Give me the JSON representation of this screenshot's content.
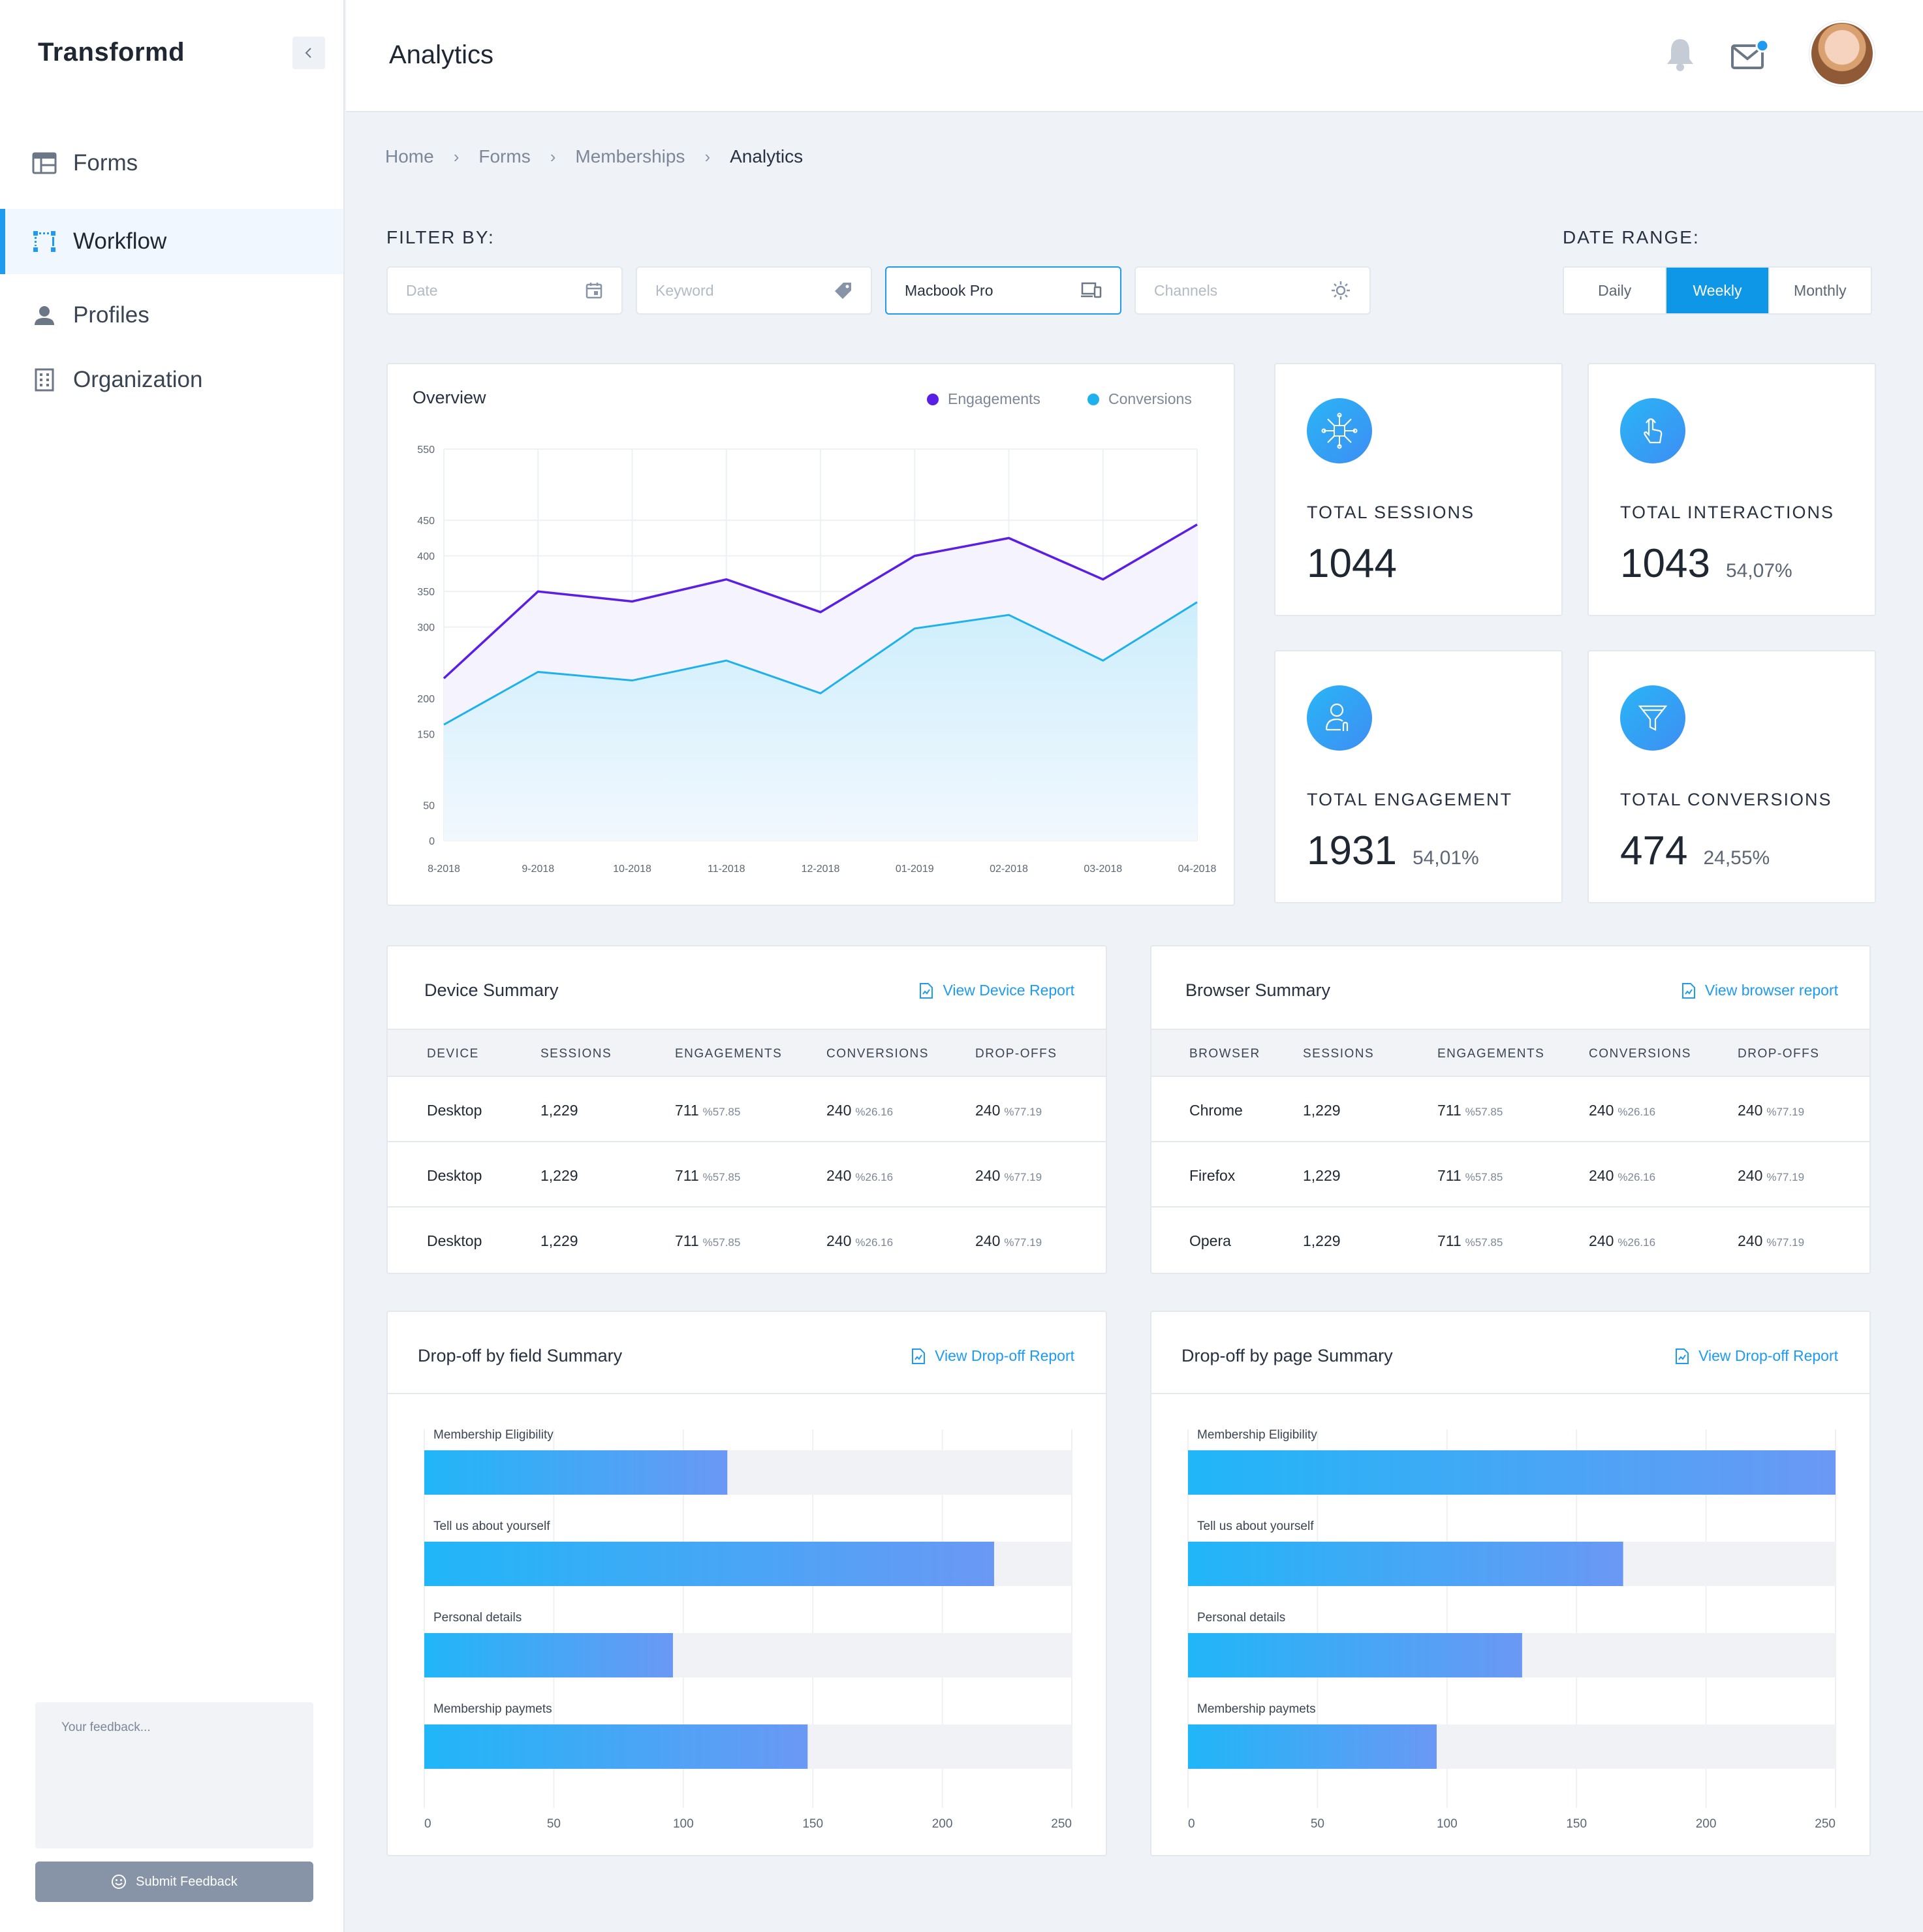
{
  "app": {
    "brand": "Transformd",
    "page_title": "Analytics"
  },
  "sidebar": {
    "items": [
      {
        "label": "Forms",
        "icon": "table-icon",
        "active": false
      },
      {
        "label": "Workflow",
        "icon": "workflow-icon",
        "active": true
      },
      {
        "label": "Profiles",
        "icon": "user-icon",
        "active": false
      },
      {
        "label": "Organization",
        "icon": "building-icon",
        "active": false
      }
    ],
    "feedback_placeholder": "Your feedback...",
    "feedback_button": "Submit Feedback"
  },
  "breadcrumb": [
    "Home",
    "Forms",
    "Memberships",
    "Analytics"
  ],
  "filters": {
    "label": "FILTER BY:",
    "date_placeholder": "Date",
    "keyword_placeholder": "Keyword",
    "device_value": "Macbook Pro",
    "channels_placeholder": "Channels"
  },
  "date_range": {
    "label": "DATE RANGE:",
    "options": [
      "Daily",
      "Weekly",
      "Monthly"
    ],
    "selected": "Weekly"
  },
  "colors": {
    "accent": "#1e9bf0",
    "engagements": "#5a1ee6",
    "conversions": "#1fb1ec"
  },
  "overview": {
    "title": "Overview",
    "legend": [
      "Engagements",
      "Conversions"
    ]
  },
  "chart_data": [
    {
      "type": "area",
      "title": "Overview",
      "categories": [
        "8-2018",
        "9-2018",
        "10-2018",
        "11-2018",
        "12-2018",
        "01-2019",
        "02-2018",
        "03-2018",
        "04-2018"
      ],
      "y_ticks": [
        0,
        50,
        150,
        200,
        300,
        350,
        400,
        450,
        550
      ],
      "ylim": [
        0,
        550
      ],
      "grid": true,
      "legend_position": "top-right",
      "series": [
        {
          "name": "Engagements",
          "values": [
            228,
            350,
            336,
            367,
            321,
            400,
            425,
            367,
            444
          ]
        },
        {
          "name": "Conversions",
          "values": [
            163,
            237,
            225,
            253,
            207,
            298,
            317,
            253,
            335
          ]
        }
      ]
    },
    {
      "type": "bar",
      "title": "Drop-off by field Summary",
      "orientation": "horizontal",
      "categories": [
        "Membership Eligibility",
        "Tell us about yourself",
        "Personal details",
        "Membership paymets"
      ],
      "values": [
        117,
        220,
        96,
        148
      ],
      "x_ticks": [
        0,
        50,
        100,
        150,
        200,
        250
      ],
      "xlim": [
        0,
        250
      ]
    },
    {
      "type": "bar",
      "title": "Drop-off by page Summary",
      "orientation": "horizontal",
      "categories": [
        "Membership Eligibility",
        "Tell us about yourself",
        "Personal details",
        "Membership paymets"
      ],
      "values": [
        250,
        168,
        129,
        96
      ],
      "x_ticks": [
        0,
        50,
        100,
        150,
        200,
        250
      ],
      "xlim": [
        0,
        250
      ]
    }
  ],
  "stats": [
    {
      "label": "TOTAL SESSIONS",
      "value": "1044",
      "pct": "",
      "icon": "network-icon"
    },
    {
      "label": "TOTAL INTERACTIONS",
      "value": "1043",
      "pct": "54,07%",
      "icon": "hand-pointer-icon"
    },
    {
      "label": "TOTAL ENGAGEMENT",
      "value": "1931",
      "pct": "54,01%",
      "icon": "user-engage-icon"
    },
    {
      "label": "TOTAL CONVERSIONS",
      "value": "474",
      "pct": "24,55%",
      "icon": "funnel-icon"
    }
  ],
  "device_summary": {
    "title": "Device Summary",
    "link": "View Device Report",
    "headers": [
      "DEVICE",
      "SESSIONS",
      "ENGAGEMENTS",
      "CONVERSIONS",
      "DROP-OFFS"
    ],
    "rows": [
      {
        "name": "Desktop",
        "sessions": "1,229",
        "eng": "711",
        "eng_pct": "%57.85",
        "conv": "240",
        "conv_pct": "%26.16",
        "drop": "240",
        "drop_pct": "%77.19"
      },
      {
        "name": "Desktop",
        "sessions": "1,229",
        "eng": "711",
        "eng_pct": "%57.85",
        "conv": "240",
        "conv_pct": "%26.16",
        "drop": "240",
        "drop_pct": "%77.19"
      },
      {
        "name": "Desktop",
        "sessions": "1,229",
        "eng": "711",
        "eng_pct": "%57.85",
        "conv": "240",
        "conv_pct": "%26.16",
        "drop": "240",
        "drop_pct": "%77.19"
      }
    ]
  },
  "browser_summary": {
    "title": "Browser Summary",
    "link": "View browser report",
    "headers": [
      "BROWSER",
      "SESSIONS",
      "ENGAGEMENTS",
      "CONVERSIONS",
      "DROP-OFFS"
    ],
    "rows": [
      {
        "name": "Chrome",
        "sessions": "1,229",
        "eng": "711",
        "eng_pct": "%57.85",
        "conv": "240",
        "conv_pct": "%26.16",
        "drop": "240",
        "drop_pct": "%77.19"
      },
      {
        "name": "Firefox",
        "sessions": "1,229",
        "eng": "711",
        "eng_pct": "%57.85",
        "conv": "240",
        "conv_pct": "%26.16",
        "drop": "240",
        "drop_pct": "%77.19"
      },
      {
        "name": "Opera",
        "sessions": "1,229",
        "eng": "711",
        "eng_pct": "%57.85",
        "conv": "240",
        "conv_pct": "%26.16",
        "drop": "240",
        "drop_pct": "%77.19"
      }
    ]
  },
  "dropoff_field": {
    "title": "Drop-off by field Summary",
    "link": "View Drop-off Report"
  },
  "dropoff_page": {
    "title": "Drop-off by page Summary",
    "link": "View Drop-off Report"
  }
}
